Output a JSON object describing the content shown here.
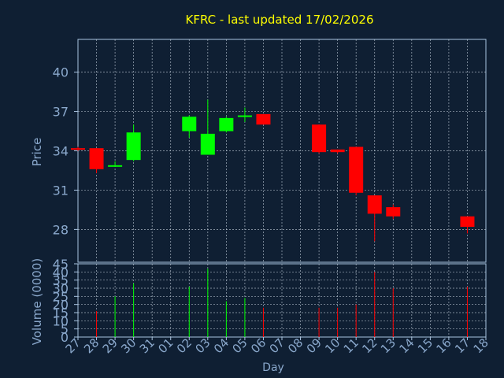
{
  "colors": {
    "background": "#0f1f33",
    "axis": "#a9c4e0",
    "grid": "#c8d4e0",
    "label": "#8aa8cc",
    "title": "#ffff00",
    "up": "#00ff00",
    "down": "#ff0000"
  },
  "chart_data": [
    {
      "type": "candlestick",
      "title": "KFRC - last updated 17/02/2026",
      "ylabel": "Price",
      "ylim": [
        25.5,
        42.5
      ],
      "yticks": [
        "40",
        "37",
        "34",
        "31",
        "28"
      ],
      "ytick_values": [
        40,
        37,
        34,
        31,
        28
      ],
      "grid": true,
      "candles": [
        {
          "day": "27",
          "open": 34.2,
          "high": 34.3,
          "low": 34.0,
          "close": 34.1
        },
        {
          "day": "28",
          "open": 34.2,
          "high": 34.2,
          "low": 32.3,
          "close": 32.6
        },
        {
          "day": "29",
          "open": 32.9,
          "high": 33.2,
          "low": 32.8,
          "close": 32.9
        },
        {
          "day": "30",
          "open": 33.3,
          "high": 36.0,
          "low": 33.2,
          "close": 35.4
        },
        {
          "day": "02",
          "open": 35.5,
          "high": 36.7,
          "low": 35.0,
          "close": 36.6
        },
        {
          "day": "03",
          "open": 33.7,
          "high": 37.9,
          "low": 33.7,
          "close": 35.3
        },
        {
          "day": "04",
          "open": 35.5,
          "high": 36.6,
          "low": 35.4,
          "close": 36.5
        },
        {
          "day": "05",
          "open": 36.6,
          "high": 37.3,
          "low": 36.2,
          "close": 36.7
        },
        {
          "day": "06",
          "open": 36.8,
          "high": 36.8,
          "low": 36.0,
          "close": 36.0
        },
        {
          "day": "09",
          "open": 36.0,
          "high": 36.0,
          "low": 33.8,
          "close": 33.9
        },
        {
          "day": "10",
          "open": 34.1,
          "high": 34.1,
          "low": 33.8,
          "close": 33.9
        },
        {
          "day": "11",
          "open": 34.3,
          "high": 34.3,
          "low": 30.6,
          "close": 30.8
        },
        {
          "day": "12",
          "open": 30.6,
          "high": 30.6,
          "low": 27.1,
          "close": 29.2
        },
        {
          "day": "13",
          "open": 29.7,
          "high": 29.9,
          "low": 28.8,
          "close": 29.0
        },
        {
          "day": "17",
          "open": 29.0,
          "high": 29.0,
          "low": 27.7,
          "close": 28.2
        }
      ]
    },
    {
      "type": "bar",
      "ylabel": "Volume (0000)",
      "xlabel": "Day",
      "ylim": [
        0,
        45
      ],
      "yticks": [
        "45",
        "40",
        "35",
        "30",
        "25",
        "20",
        "15",
        "10",
        "5",
        "0"
      ],
      "ytick_values": [
        45,
        40,
        35,
        30,
        25,
        20,
        15,
        10,
        5,
        0
      ],
      "categories": [
        "27",
        "28",
        "29",
        "30",
        "31",
        "01",
        "02",
        "03",
        "04",
        "05",
        "06",
        "07",
        "08",
        "09",
        "10",
        "11",
        "12",
        "13",
        "14",
        "15",
        "16",
        "17",
        "18"
      ],
      "bars": [
        {
          "day": "28",
          "value": 16,
          "direction": "down"
        },
        {
          "day": "29",
          "value": 25,
          "direction": "up"
        },
        {
          "day": "30",
          "value": 33,
          "direction": "up"
        },
        {
          "day": "02",
          "value": 31,
          "direction": "up"
        },
        {
          "day": "03",
          "value": 42,
          "direction": "up"
        },
        {
          "day": "04",
          "value": 22,
          "direction": "up"
        },
        {
          "day": "05",
          "value": 24,
          "direction": "up"
        },
        {
          "day": "06",
          "value": 18,
          "direction": "down"
        },
        {
          "day": "09",
          "value": 18,
          "direction": "down"
        },
        {
          "day": "10",
          "value": 18,
          "direction": "down"
        },
        {
          "day": "11",
          "value": 20,
          "direction": "down"
        },
        {
          "day": "12",
          "value": 40,
          "direction": "down"
        },
        {
          "day": "13",
          "value": 30,
          "direction": "down"
        },
        {
          "day": "17",
          "value": 31,
          "direction": "down"
        }
      ]
    }
  ]
}
